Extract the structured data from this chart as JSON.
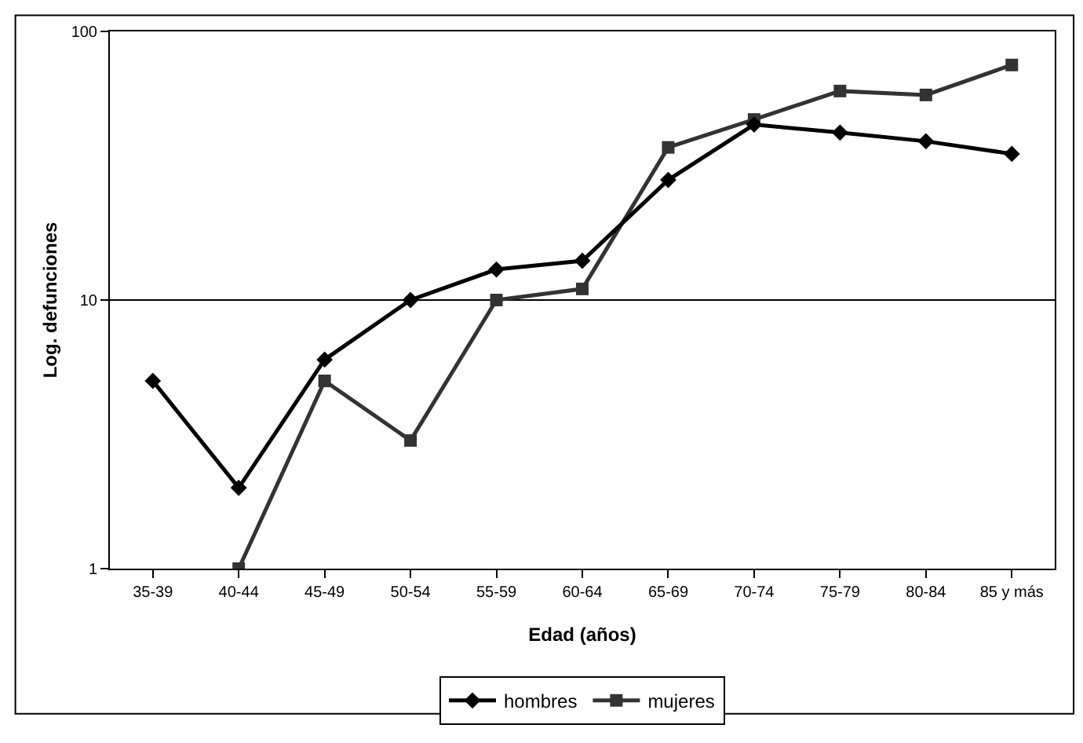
{
  "chart_data": {
    "type": "line",
    "xlabel": "Edad (años)",
    "ylabel": "Log. defunciones",
    "categories": [
      "35-39",
      "40-44",
      "45-49",
      "50-54",
      "55-59",
      "60-64",
      "65-69",
      "70-74",
      "75-79",
      "80-84",
      "85 y más"
    ],
    "series": [
      {
        "name": "hombres",
        "color": "#000000",
        "marker": "diamond",
        "values": [
          5,
          2,
          6,
          10,
          13,
          14,
          28,
          45,
          42,
          39,
          35
        ]
      },
      {
        "name": "mujeres",
        "color": "#333333",
        "marker": "square",
        "values": [
          null,
          1,
          5,
          3,
          10,
          11,
          37,
          47,
          60,
          58,
          75
        ]
      }
    ],
    "log": true,
    "ylim": [
      1,
      100
    ],
    "yticks": [
      1,
      10,
      100
    ],
    "grid": "y",
    "legend": "bottom",
    "line_style": "solid"
  }
}
